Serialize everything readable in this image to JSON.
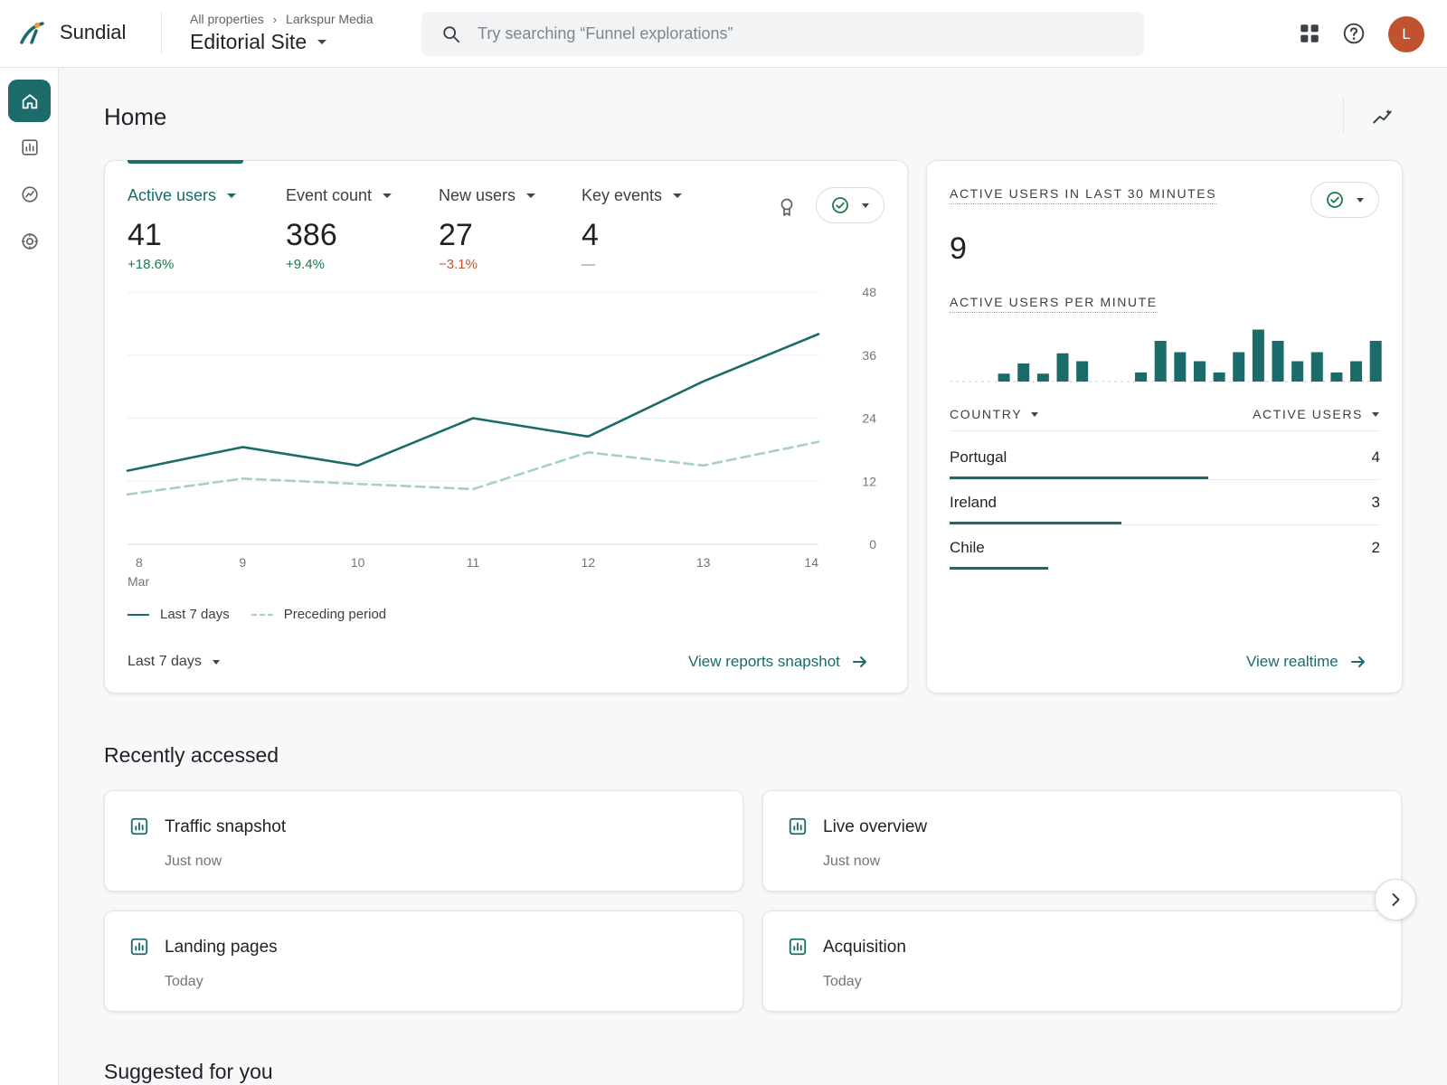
{
  "header": {
    "brand": "Sundial",
    "breadcrumb": [
      "All properties",
      "Larkspur Media"
    ],
    "property": "Editorial Site",
    "search_placeholder": "Try searching “Funnel explorations”",
    "avatar_initial": "L",
    "icons": [
      "search-icon",
      "apps-grid-icon",
      "help-icon"
    ]
  },
  "rail": {
    "items": [
      "home-icon",
      "reports-icon",
      "explore-icon",
      "advertising-icon"
    ],
    "active": 0
  },
  "page": {
    "title": "Home"
  },
  "metrics": {
    "tabs": [
      {
        "label": "Active users",
        "value": "41",
        "delta": "+18.6%",
        "trend": "pos"
      },
      {
        "label": "Event count",
        "value": "386",
        "delta": "+9.4%",
        "trend": "pos"
      },
      {
        "label": "New users",
        "value": "27",
        "delta": "−3.1%",
        "trend": "neg"
      },
      {
        "label": "Key events",
        "value": "4",
        "delta": "—",
        "trend": "neutral"
      }
    ],
    "legend": {
      "current": "Last 7 days",
      "previous": "Preceding period"
    },
    "range": "Last 7 days",
    "link": "View reports snapshot"
  },
  "chart_data": {
    "type": "line",
    "x": [
      "8",
      "9",
      "10",
      "11",
      "12",
      "13",
      "14"
    ],
    "x_sub": [
      "Mar",
      "",
      "",
      "",
      "",
      "",
      ""
    ],
    "yticks": [
      "0",
      "12",
      "24",
      "36",
      "48"
    ],
    "ylim": [
      0,
      48
    ],
    "series": [
      {
        "name": "Last 7 days",
        "values": [
          14,
          18.5,
          15,
          24,
          20.5,
          31,
          40
        ],
        "color": "#1a6b6a",
        "style": "solid"
      },
      {
        "name": "Preceding period",
        "values": [
          9.5,
          12.5,
          11.5,
          10.5,
          17.5,
          15,
          19.5
        ],
        "color": "#a6cfc8",
        "style": "dashed"
      }
    ]
  },
  "realtime": {
    "title": "ACTIVE USERS IN LAST 30 MINUTES",
    "value": "9",
    "subtitle": "ACTIVE USERS PER MINUTE",
    "per_minute": [
      0,
      0,
      0.35,
      0.8,
      0.35,
      1.25,
      0.9,
      0,
      0,
      0.4,
      1.8,
      1.3,
      0.9,
      0.4,
      1.3,
      2.3,
      1.8,
      0.9,
      1.3,
      0.4,
      0.9,
      1.8
    ],
    "col_country": "COUNTRY",
    "col_users": "ACTIVE USERS",
    "rows": [
      {
        "country": "Portugal",
        "users": "4",
        "share": 0.6
      },
      {
        "country": "Ireland",
        "users": "3",
        "share": 0.4
      },
      {
        "country": "Chile",
        "users": "2",
        "share": 0.23
      }
    ],
    "link": "View realtime"
  },
  "recent": {
    "title": "Recently accessed",
    "items": [
      {
        "name": "Traffic snapshot",
        "time": "Just now"
      },
      {
        "name": "Live overview",
        "time": "Just now"
      },
      {
        "name": "Landing pages",
        "time": "Today"
      },
      {
        "name": "Acquisition",
        "time": "Today"
      }
    ]
  },
  "suggested": {
    "title": "Suggested for you"
  },
  "colors": {
    "accent": "#1a6b6a",
    "positive": "#1a7a4a",
    "negative": "#c0522f",
    "avatar": "#c0522f"
  }
}
